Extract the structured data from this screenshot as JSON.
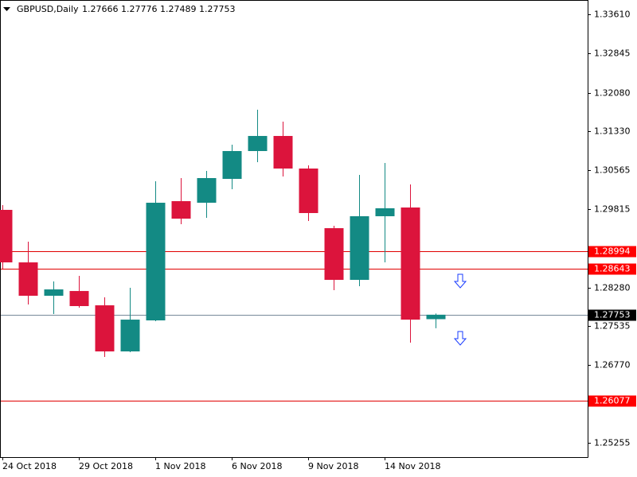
{
  "chart_data": {
    "type": "candlestick",
    "symbol": "GBPUSD,Daily",
    "categories": [
      "24 Oct 2018",
      null,
      null,
      "29 Oct 2018",
      null,
      null,
      "1 Nov 2018",
      null,
      null,
      "6 Nov 2018",
      null,
      null,
      "9 Nov 2018",
      null,
      null,
      "14 Nov 2018",
      null,
      null
    ],
    "open": [
      1.29797,
      1.28773,
      1.28122,
      1.28215,
      1.27936,
      1.27037,
      1.27642,
      1.29967,
      1.29936,
      1.30401,
      1.30944,
      1.31238,
      1.30603,
      1.2944,
      1.28432,
      1.29673,
      1.29843,
      1.27666
    ],
    "high": [
      1.2989,
      1.29177,
      1.28401,
      1.2851,
      1.28091,
      1.28277,
      1.30355,
      1.30417,
      1.30556,
      1.31068,
      1.3175,
      1.31517,
      1.30665,
      1.29487,
      1.30479,
      1.30711,
      1.30293,
      1.27776
    ],
    "low": [
      1.2865,
      1.27952,
      1.27766,
      1.2789,
      1.26929,
      1.27022,
      1.27626,
      1.29518,
      1.29642,
      1.302,
      1.30727,
      1.30448,
      1.2958,
      1.28231,
      1.28309,
      1.28773,
      1.27208,
      1.27489
    ],
    "close": [
      1.28773,
      1.28122,
      1.28246,
      1.27921,
      1.27037,
      1.27657,
      1.29936,
      1.29626,
      1.30417,
      1.30944,
      1.31238,
      1.30603,
      1.29735,
      1.28432,
      1.29673,
      1.29828,
      1.27657,
      1.27753
    ],
    "up_color": "#138a84",
    "down_color": "#dc143c",
    "ylim": [
      1.24976,
      1.33889
    ],
    "yticks": [
      {
        "value": 1.3361,
        "label": "1.33610"
      },
      1.32845,
      {
        "value": 1.3208,
        "label": "1.32080"
      },
      {
        "value": 1.3133,
        "label": "1.31330"
      },
      1.30565,
      1.29815,
      {
        "value": 1.2828,
        "label": "1.28280"
      },
      1.27535,
      {
        "value": 1.2677,
        "label": "1.26770"
      },
      1.25255
    ],
    "lines": [
      {
        "value": 1.28994,
        "color": "#e00000",
        "label_color": "#ff0000"
      },
      {
        "value": 1.28643,
        "color": "#e00000",
        "label_color": "#ff0000"
      },
      {
        "value": 1.26077,
        "color": "#e00000",
        "label_color": "#ff0000"
      },
      {
        "value": 1.27753,
        "color": "#778899",
        "label_color": "#000000"
      }
    ]
  }
}
